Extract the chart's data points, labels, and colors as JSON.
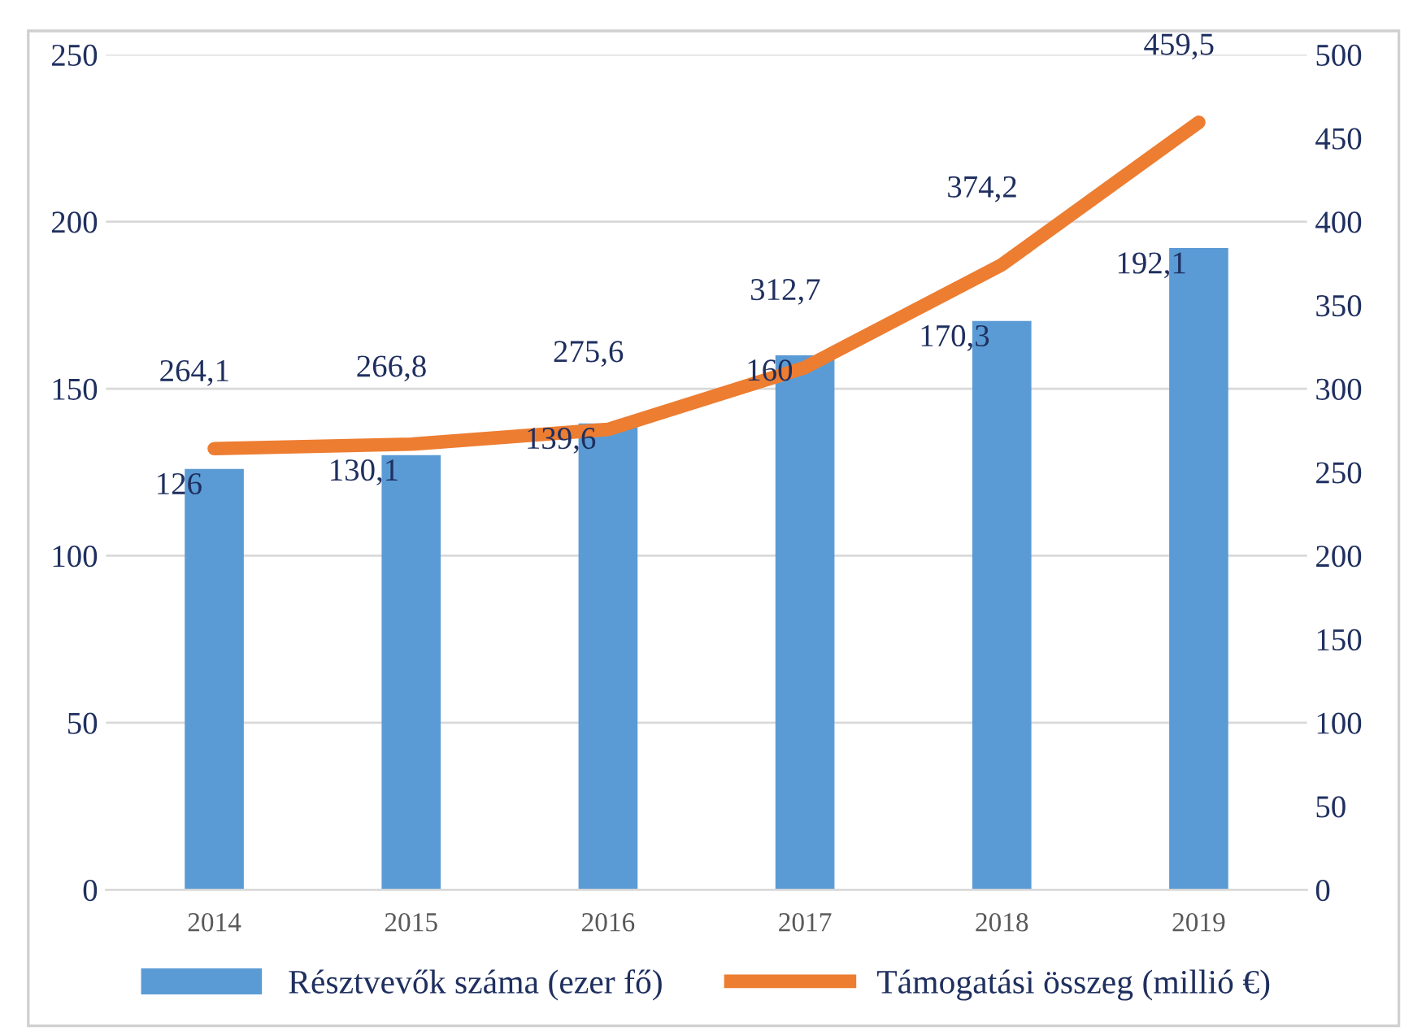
{
  "chart_data": {
    "type": "bar",
    "categories": [
      "2014",
      "2015",
      "2016",
      "2017",
      "2018",
      "2019"
    ],
    "series": [
      {
        "name": "Résztvevők száma (ezer fő)",
        "type": "bar",
        "color": "#5b9bd5",
        "values": [
          126,
          130.1,
          139.6,
          160,
          170.3,
          192.1
        ],
        "value_labels": [
          "126",
          "130,1",
          "139,6",
          "160",
          "170,3",
          "192,1"
        ]
      },
      {
        "name": "Támogatási összeg (millió €)",
        "type": "line",
        "axis": "y2",
        "color": "#ed7d31",
        "values": [
          264.1,
          266.8,
          275.6,
          312.7,
          374.2,
          459.5
        ],
        "value_labels": [
          "264,1",
          "266,8",
          "275,6",
          "312,7",
          "374,2",
          "459,5"
        ],
        "marker": "none",
        "line_style": "solid"
      }
    ],
    "ylim": [
      0,
      250
    ],
    "yticks": [
      0,
      50,
      100,
      150,
      200,
      250
    ],
    "y2lim": [
      0,
      500
    ],
    "y2ticks": [
      0,
      50,
      100,
      150,
      200,
      250,
      300,
      350,
      400,
      450,
      500
    ],
    "grid": "y",
    "legend": "bottom"
  }
}
